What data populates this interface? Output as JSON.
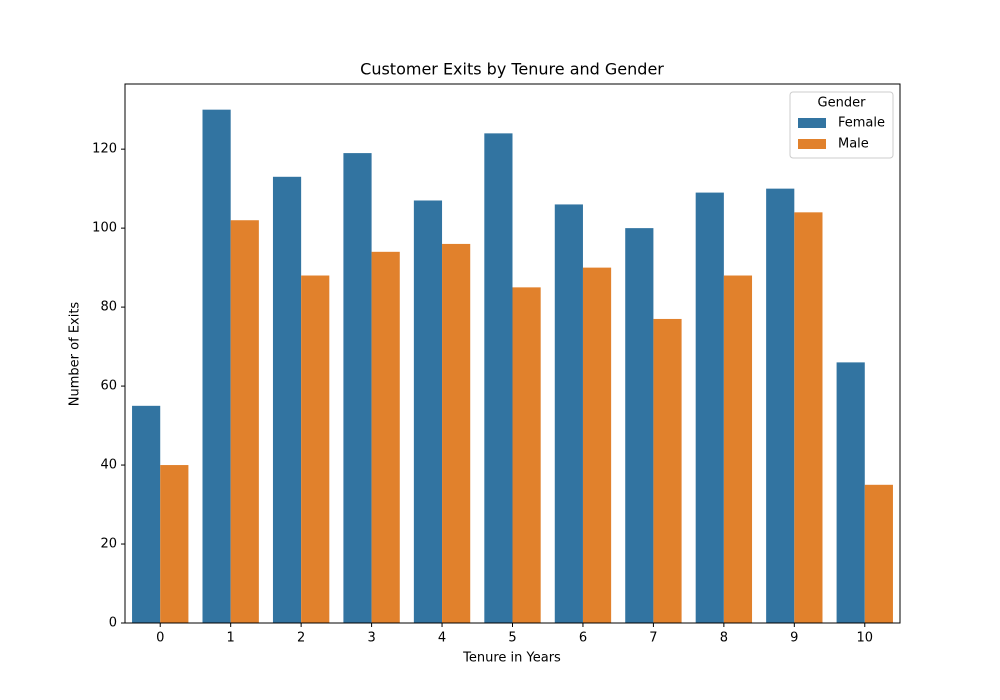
{
  "chart_data": {
    "type": "bar",
    "title": "Customer Exits by Tenure and Gender",
    "xlabel": "Tenure in Years",
    "ylabel": "Number of Exits",
    "categories": [
      "0",
      "1",
      "2",
      "3",
      "4",
      "5",
      "6",
      "7",
      "8",
      "9",
      "10"
    ],
    "series": [
      {
        "name": "Female",
        "color": "#3274a1",
        "values": [
          55,
          130,
          113,
          119,
          107,
          124,
          106,
          100,
          109,
          110,
          66
        ]
      },
      {
        "name": "Male",
        "color": "#e1812c",
        "values": [
          40,
          102,
          88,
          94,
          96,
          85,
          90,
          77,
          88,
          104,
          35
        ]
      }
    ],
    "ylim": [
      0,
      136.5
    ],
    "yticks": [
      0,
      20,
      40,
      60,
      80,
      100,
      120
    ],
    "legend_title": "Gender",
    "legend_position": "upper right",
    "grid": false
  }
}
